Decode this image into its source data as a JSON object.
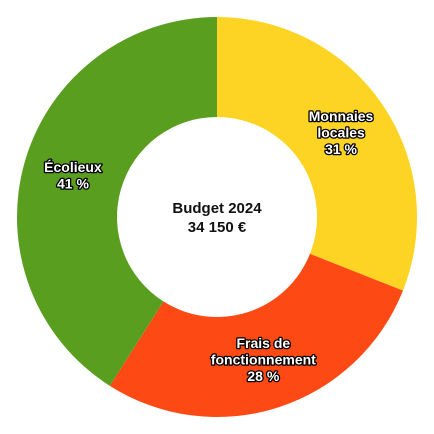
{
  "chart_data": {
    "type": "pie",
    "variant": "donut",
    "center": {
      "line1": "Budget 2024",
      "line2": "34 150 €"
    },
    "slices": [
      {
        "label_lines": [
          "Monnaies",
          "locales"
        ],
        "value": 31,
        "value_label": "31 %",
        "color": "#fdd423"
      },
      {
        "label_lines": [
          "Frais de",
          "fonctionnement"
        ],
        "value": 28,
        "value_label": "28 %",
        "color": "#fd4a14"
      },
      {
        "label_lines": [
          "Écolieux"
        ],
        "value": 41,
        "value_label": "41 %",
        "color": "#5a9e1f"
      }
    ]
  }
}
